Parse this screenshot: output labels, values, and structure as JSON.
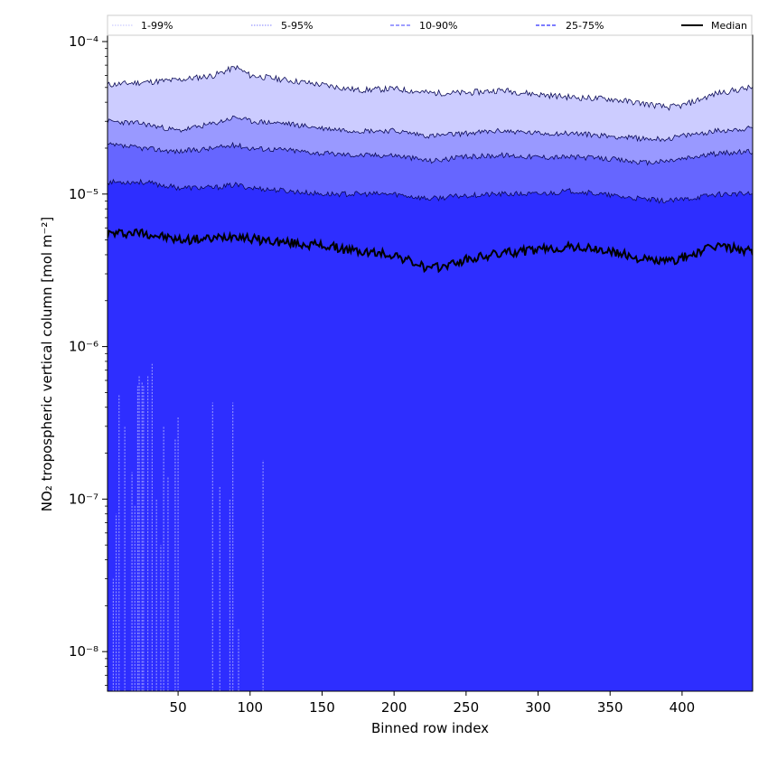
{
  "chart_data": {
    "type": "area",
    "title": "",
    "xlabel": "Binned row index",
    "ylabel": "NO₂ tropospheric vertical column [mol m⁻²]",
    "xlim": [
      1,
      449
    ],
    "ylim": [
      5.5e-09,
      0.00011
    ],
    "yscale": "log",
    "grid": false,
    "legend_position": "top",
    "x_ticks": [
      50,
      100,
      150,
      200,
      250,
      300,
      350,
      400
    ],
    "x_tick_labels": [
      "50",
      "100",
      "150",
      "200",
      "250",
      "300",
      "350",
      "400"
    ],
    "y_ticks": [
      1e-08,
      1e-07,
      1e-06,
      1e-05,
      0.0001
    ],
    "y_tick_labels": [
      "10⁻⁸",
      "10⁻⁷",
      "10⁻⁶",
      "10⁻⁵",
      "10⁻⁴"
    ],
    "x": [
      1,
      25,
      50,
      75,
      90,
      100,
      125,
      150,
      175,
      200,
      225,
      250,
      275,
      300,
      325,
      350,
      375,
      390,
      400,
      425,
      449
    ],
    "bands": [
      {
        "name": "1-99%",
        "color": "#ccccff",
        "lower": [
          5e-09,
          5e-09,
          5e-09,
          5e-09,
          5e-09,
          5e-09,
          5e-09,
          5e-09,
          5e-09,
          5e-09,
          5e-09,
          5e-09,
          5e-09,
          5e-09,
          5e-09,
          5e-09,
          5e-09,
          5e-09,
          5e-09,
          5e-09,
          5e-09
        ],
        "upper": [
          5.2e-05,
          5.4e-05,
          5.6e-05,
          6e-05,
          6.8e-05,
          6e-05,
          5.6e-05,
          5.2e-05,
          4.8e-05,
          4.9e-05,
          4.6e-05,
          4.6e-05,
          4.8e-05,
          4.5e-05,
          4.3e-05,
          4.2e-05,
          3.9e-05,
          3.7e-05,
          3.8e-05,
          4.6e-05,
          5e-05
        ]
      },
      {
        "name": "5-95%",
        "color": "#9999ff",
        "lower": [
          5e-09,
          5e-09,
          5e-09,
          5e-09,
          5e-09,
          5e-09,
          5e-09,
          5e-09,
          5e-09,
          5e-09,
          5e-09,
          5e-09,
          5e-09,
          5e-09,
          5e-09,
          5e-09,
          5e-09,
          5e-09,
          5e-09,
          5e-09,
          5e-09
        ],
        "upper": [
          3e-05,
          2.9e-05,
          2.6e-05,
          2.9e-05,
          3.2e-05,
          3e-05,
          2.9e-05,
          2.7e-05,
          2.6e-05,
          2.6e-05,
          2.4e-05,
          2.5e-05,
          2.6e-05,
          2.5e-05,
          2.5e-05,
          2.4e-05,
          2.3e-05,
          2.3e-05,
          2.4e-05,
          2.6e-05,
          2.7e-05
        ]
      },
      {
        "name": "10-90%",
        "color": "#6666ff",
        "lower": [
          5e-09,
          5e-09,
          5e-09,
          5e-09,
          5e-09,
          5e-09,
          5e-09,
          5e-09,
          5e-09,
          5e-09,
          5e-09,
          5e-09,
          5e-09,
          5e-09,
          5e-09,
          5e-09,
          5e-09,
          5e-09,
          5e-09,
          5e-09,
          5e-09
        ],
        "upper": [
          2.1e-05,
          2e-05,
          1.9e-05,
          2e-05,
          2.1e-05,
          2e-05,
          1.95e-05,
          1.85e-05,
          1.8e-05,
          1.8e-05,
          1.65e-05,
          1.75e-05,
          1.8e-05,
          1.75e-05,
          1.75e-05,
          1.7e-05,
          1.6e-05,
          1.65e-05,
          1.7e-05,
          1.85e-05,
          1.9e-05
        ]
      },
      {
        "name": "25-75%",
        "color": "#2e2eff",
        "lower": [
          5e-09,
          5e-09,
          5e-09,
          5e-09,
          5e-09,
          5e-09,
          5e-09,
          5e-09,
          5e-09,
          5e-09,
          5e-09,
          5e-09,
          5e-09,
          5e-09,
          5e-09,
          5e-09,
          5e-09,
          5e-09,
          5e-09,
          5e-09,
          5e-09
        ],
        "upper": [
          1.2e-05,
          1.2e-05,
          1.1e-05,
          1.1e-05,
          1.15e-05,
          1.1e-05,
          1.05e-05,
          1e-05,
          1e-05,
          1e-05,
          9.3e-06,
          9.8e-06,
          1e-05,
          1e-05,
          1.05e-05,
          9.8e-06,
          9.2e-06,
          9e-06,
          9.2e-06,
          1e-05,
          1e-05
        ]
      }
    ],
    "median": {
      "name": "Median",
      "color": "#000000",
      "values": [
        5.5e-06,
        5.6e-06,
        5e-06,
        5.1e-06,
        5.4e-06,
        5.1e-06,
        4.8e-06,
        4.6e-06,
        4.2e-06,
        4e-06,
        3.2e-06,
        3.7e-06,
        4.1e-06,
        4.3e-06,
        4.5e-06,
        4.2e-06,
        3.7e-06,
        3.6e-06,
        3.8e-06,
        4.6e-06,
        4.2e-06
      ]
    },
    "spikes": [
      {
        "x": 5,
        "y": 3e-08
      },
      {
        "x": 7,
        "y": 8e-08
      },
      {
        "x": 9,
        "y": 4.8e-07
      },
      {
        "x": 13,
        "y": 3e-07
      },
      {
        "x": 18,
        "y": 1.5e-07
      },
      {
        "x": 20,
        "y": 9e-08
      },
      {
        "x": 22,
        "y": 5.5e-07
      },
      {
        "x": 23,
        "y": 6.5e-07
      },
      {
        "x": 25,
        "y": 5.8e-07
      },
      {
        "x": 26,
        "y": 5.5e-07
      },
      {
        "x": 29,
        "y": 6.5e-07
      },
      {
        "x": 32,
        "y": 7.7e-07
      },
      {
        "x": 35,
        "y": 1e-07
      },
      {
        "x": 38,
        "y": 5e-08
      },
      {
        "x": 40,
        "y": 3e-07
      },
      {
        "x": 43,
        "y": 1.4e-07
      },
      {
        "x": 48,
        "y": 2.5e-07
      },
      {
        "x": 50,
        "y": 3.5e-07
      },
      {
        "x": 74,
        "y": 4.3e-07
      },
      {
        "x": 79,
        "y": 1.2e-07
      },
      {
        "x": 86,
        "y": 1e-07
      },
      {
        "x": 88,
        "y": 4.3e-07
      },
      {
        "x": 92,
        "y": 1.4e-08
      },
      {
        "x": 109,
        "y": 1.8e-07
      }
    ],
    "legend": [
      {
        "label": "1-99%",
        "color": "#ccccff",
        "style": "dotted"
      },
      {
        "label": "5-95%",
        "color": "#9999ff",
        "style": "dotted"
      },
      {
        "label": "10-90%",
        "color": "#6666ff",
        "style": "dashed"
      },
      {
        "label": "25-75%",
        "color": "#2e2eff",
        "style": "dashed"
      },
      {
        "label": "Median",
        "color": "#000000",
        "style": "solid"
      }
    ]
  }
}
